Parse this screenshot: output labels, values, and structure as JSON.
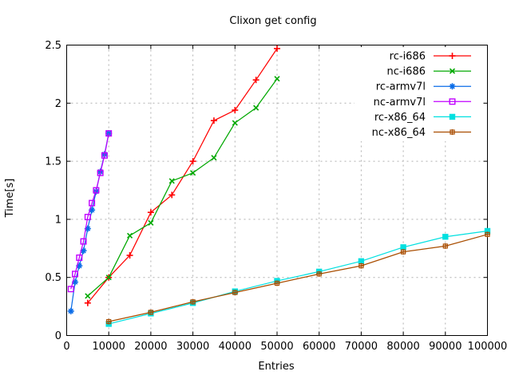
{
  "window": {
    "background": "#ffffff"
  },
  "chart_data": {
    "type": "line",
    "title": "Clixon get config",
    "xlabel": "Entries",
    "ylabel": "Time[s]",
    "xlim": [
      0,
      100000
    ],
    "ylim": [
      0,
      2.5
    ],
    "x_tick_labels": [
      "0",
      "10000",
      "20000",
      "30000",
      "40000",
      "50000",
      "60000",
      "70000",
      "80000",
      "90000",
      "100000"
    ],
    "y_tick_labels": [
      "0",
      "0.5",
      "1",
      "1.5",
      "2",
      "2.5"
    ],
    "grid": true,
    "grid_color": "#b0b0b0",
    "axis_color": "#000000",
    "legend_position": "top-right-inside",
    "legend_background": "#ffffff",
    "series": [
      {
        "name": "rc-i686",
        "color": "#ff0000",
        "marker": "plus",
        "x": [
          5000,
          10000,
          15000,
          20000,
          25000,
          30000,
          35000,
          40000,
          45000,
          50000
        ],
        "y": [
          0.28,
          0.5,
          0.69,
          1.06,
          1.21,
          1.5,
          1.85,
          1.94,
          2.2,
          2.47
        ]
      },
      {
        "name": "nc-i686",
        "color": "#00a800",
        "marker": "cross",
        "x": [
          5000,
          10000,
          15000,
          20000,
          25000,
          30000,
          35000,
          40000,
          45000,
          50000
        ],
        "y": [
          0.34,
          0.5,
          0.86,
          0.97,
          1.33,
          1.4,
          1.53,
          1.83,
          1.96,
          2.21
        ]
      },
      {
        "name": "rc-armv7l",
        "color": "#0a6ce8",
        "marker": "star",
        "x": [
          1000,
          2000,
          3000,
          4000,
          5000,
          6000,
          7000,
          8000,
          9000,
          10000
        ],
        "y": [
          0.21,
          0.46,
          0.6,
          0.73,
          0.92,
          1.08,
          1.24,
          1.41,
          1.56,
          1.74
        ]
      },
      {
        "name": "nc-armv7l",
        "color": "#c000ff",
        "marker": "square-open",
        "x": [
          1000,
          2000,
          3000,
          4000,
          5000,
          6000,
          7000,
          8000,
          9000,
          10000
        ],
        "y": [
          0.4,
          0.53,
          0.67,
          0.81,
          1.02,
          1.14,
          1.25,
          1.4,
          1.55,
          1.74
        ]
      },
      {
        "name": "rc-x86_64",
        "color": "#00e0e0",
        "marker": "square-filled",
        "x": [
          10000,
          20000,
          30000,
          40000,
          50000,
          60000,
          70000,
          80000,
          90000,
          100000
        ],
        "y": [
          0.1,
          0.19,
          0.28,
          0.38,
          0.47,
          0.55,
          0.64,
          0.76,
          0.85,
          0.9
        ]
      },
      {
        "name": "nc-x86_64",
        "color": "#a94d00",
        "marker": "square-plus",
        "x": [
          10000,
          20000,
          30000,
          40000,
          50000,
          60000,
          70000,
          80000,
          90000,
          100000
        ],
        "y": [
          0.12,
          0.2,
          0.29,
          0.37,
          0.45,
          0.53,
          0.6,
          0.72,
          0.77,
          0.87
        ]
      }
    ]
  }
}
